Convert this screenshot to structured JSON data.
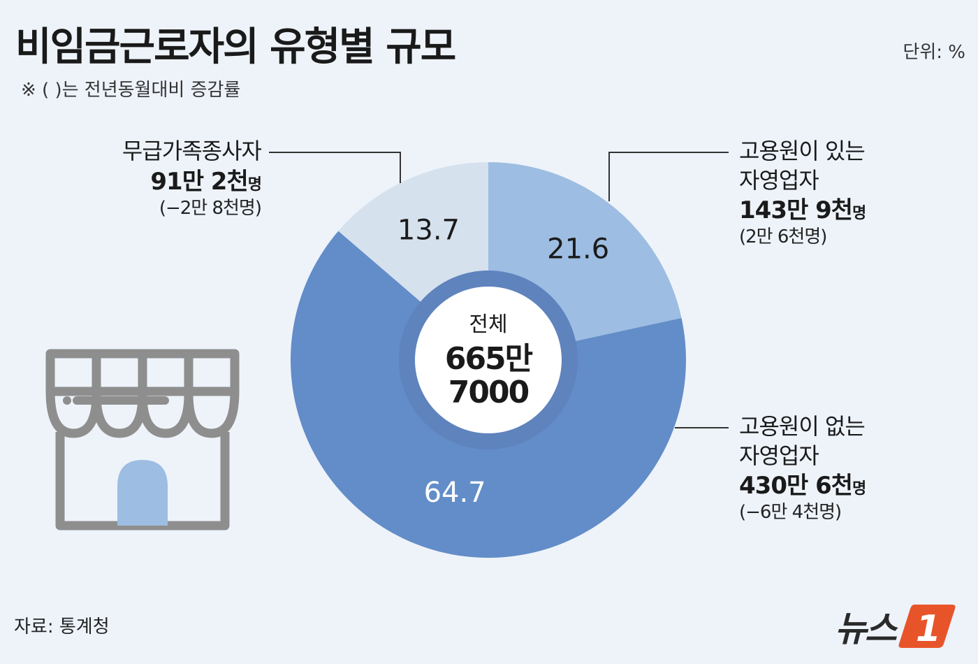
{
  "header": {
    "title": "비임금근로자의 유형별 규모",
    "unit": "단위: %",
    "note": "※ ( )는 전년동월대비 증감률"
  },
  "footer": {
    "source": "자료: 통계청",
    "logo_text": "뉴스",
    "logo_mark": "1"
  },
  "center": {
    "label": "전체",
    "line1": "665만",
    "line2": "7000"
  },
  "callouts": {
    "family_worker": {
      "name": "무급가족종사자",
      "count_strong": "91만 2천",
      "count_suffix": "명",
      "change": "(−2만 8천명)"
    },
    "with_employees": {
      "name_line1": "고용원이 있는",
      "name_line2": "자영업자",
      "count_strong": "143만 9천",
      "count_suffix": "명",
      "change": "(2만 6천명)"
    },
    "without_employees": {
      "name_line1": "고용원이 없는",
      "name_line2": "자영업자",
      "count_strong": "430만 6천",
      "count_suffix": "명",
      "change": "(−6만 4천명)"
    }
  },
  "chart_data": {
    "type": "pie",
    "title": "비임금근로자의 유형별 규모",
    "unit": "%",
    "categories": [
      "고용원이 있는 자영업자",
      "고용원이 없는 자영업자",
      "무급가족종사자"
    ],
    "values": [
      21.6,
      64.7,
      13.7
    ],
    "value_labels": [
      "21.6",
      "64.7",
      "13.7"
    ],
    "colors": [
      "#9dbde2",
      "#628dc8",
      "#d6e1ee"
    ],
    "inner_ring_color": "#5e83bd",
    "label_colors": [
      "#1a1a1a",
      "#ffffff",
      "#1a1a1a"
    ]
  },
  "icon": {
    "name": "store-icon",
    "stroke_color": "#8e8e8e",
    "door_color": "#9dbde2"
  }
}
